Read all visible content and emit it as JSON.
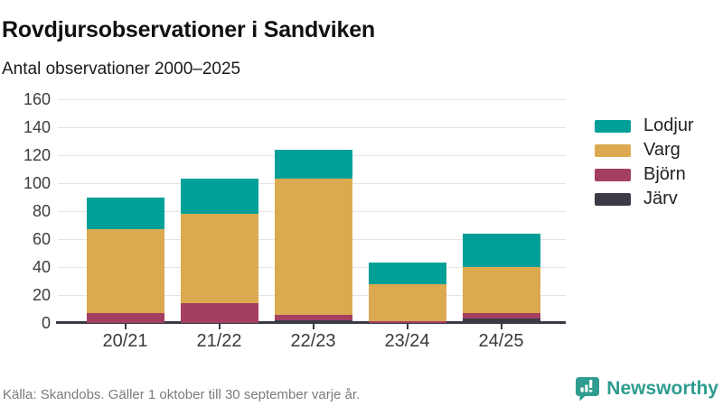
{
  "header": {
    "title": "Rovdjursobservationer i Sandviken",
    "subtitle": "Antal observationer 2000–2025"
  },
  "footer": {
    "source": "Källa: Skandobs. Gäller 1 oktober till 30 september varje år."
  },
  "logo": {
    "text": "Newsworthy",
    "icon": "newsworthy-chart-bubble-icon",
    "color": "#2e9c8f"
  },
  "colors": {
    "lodjur": "#00a099",
    "varg": "#dbaa50",
    "bjorn": "#a43f62",
    "jarv": "#3b3b47",
    "grid": "#e4e4e4",
    "axis": "#3a3a44",
    "text_dark": "#1a1a1a",
    "text_muted": "#7b7b7b"
  },
  "chart_data": {
    "type": "bar",
    "stacked": true,
    "title": "Rovdjursobservationer i Sandviken",
    "subtitle": "Antal observationer 2000–2025",
    "categories": [
      "20/21",
      "21/22",
      "22/23",
      "23/24",
      "24/25"
    ],
    "series": [
      {
        "name": "Lodjur",
        "color": "#00a099",
        "values": [
          23,
          25,
          21,
          15,
          24
        ]
      },
      {
        "name": "Varg",
        "color": "#dbaa50",
        "values": [
          60,
          64,
          97,
          27,
          33
        ]
      },
      {
        "name": "Björn",
        "color": "#a43f62",
        "values": [
          7,
          14,
          4,
          1,
          4
        ]
      },
      {
        "name": "Järv",
        "color": "#3b3b47",
        "values": [
          0,
          0,
          2,
          0,
          3
        ]
      }
    ],
    "stack_order_bottom_to_top": [
      "Järv",
      "Björn",
      "Varg",
      "Lodjur"
    ],
    "totals": [
      90,
      103,
      124,
      43,
      64
    ],
    "xlabel": "",
    "ylabel": "",
    "ylim": [
      0,
      160
    ],
    "yticks": [
      0,
      20,
      40,
      60,
      80,
      100,
      120,
      140,
      160
    ],
    "grid": "horizontal",
    "legend_position": "right"
  }
}
